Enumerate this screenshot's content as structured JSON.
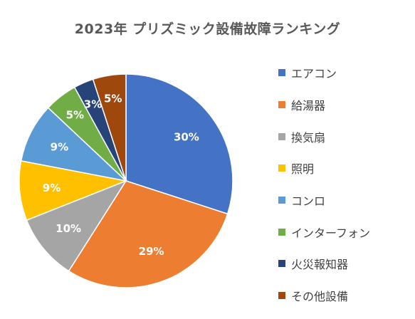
{
  "chart_data": {
    "type": "pie",
    "title": "2023年 プリズミック設備故障ランキング",
    "categories": [
      "エアコン",
      "給湯器",
      "換気扇",
      "照明",
      "コンロ",
      "インターフォン",
      "火災報知器",
      "その他設備"
    ],
    "values": [
      30,
      29,
      10,
      9,
      9,
      5,
      3,
      5
    ],
    "data_labels": [
      "30%",
      "29%",
      "10%",
      "9%",
      "9%",
      "5%",
      "3%",
      "5%"
    ],
    "colors": [
      "#4472C4",
      "#ED7D31",
      "#A5A5A5",
      "#FFC000",
      "#5B9BD5",
      "#70AD47",
      "#264478",
      "#9E480E"
    ],
    "legend_position": "right",
    "start_angle": "top, clockwise"
  }
}
